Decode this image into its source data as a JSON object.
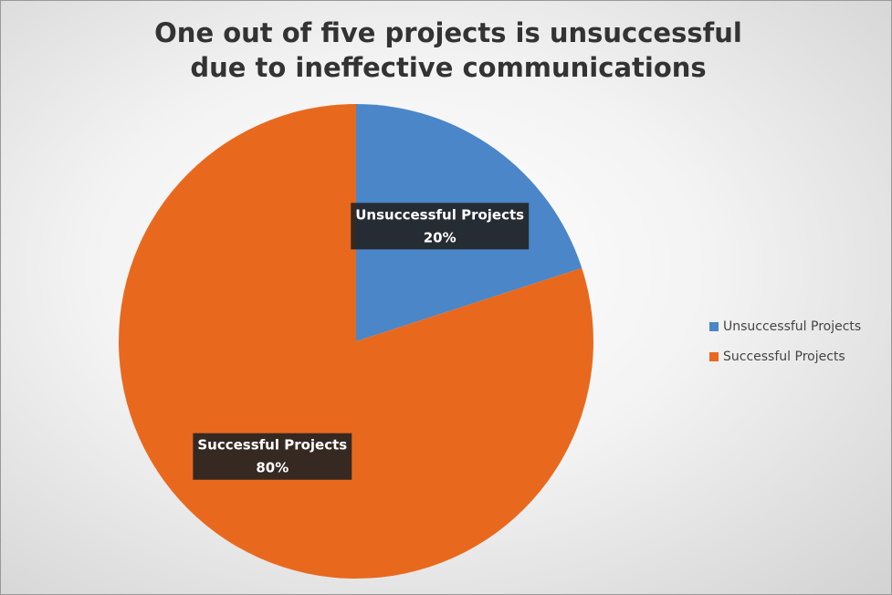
{
  "chart_data": {
    "type": "pie",
    "title": "One out of five projects is unsuccessful due to ineffective communications",
    "categories": [
      "Unsuccessful Projects",
      "Successful Projects"
    ],
    "values": [
      20,
      80
    ],
    "value_labels": [
      "20%",
      "80%"
    ],
    "colors": [
      "#4a86c8",
      "#e8691e"
    ],
    "legend": "right"
  }
}
